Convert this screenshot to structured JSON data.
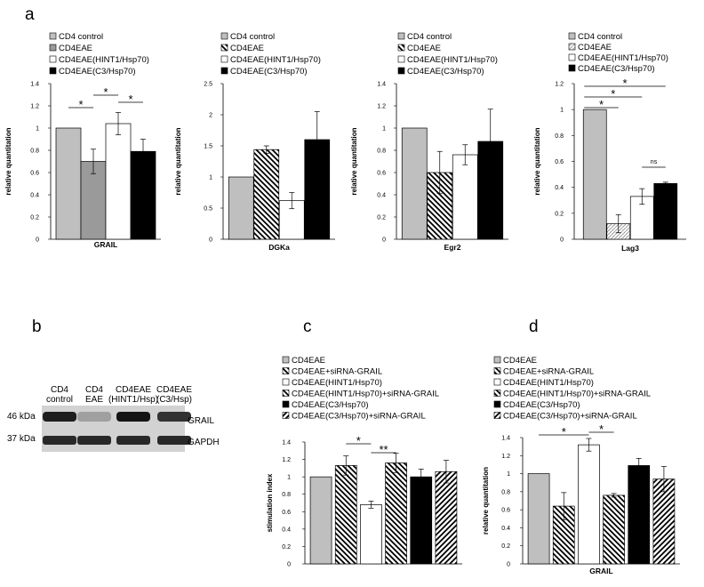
{
  "panel_labels": {
    "a": "a",
    "b": "b",
    "c": "c",
    "d": "d"
  },
  "colors": {
    "control": "#bfbfbf",
    "eae_grail": "#9a9a9a",
    "white": "#ffffff",
    "black": "#000000",
    "lag3_eae": "#e5e5e5"
  },
  "chart_data": [
    {
      "id": "grail",
      "type": "bar",
      "title": "",
      "xlabel": "GRAIL",
      "ylabel": "relative quantitation",
      "ylim": [
        0,
        1.4
      ],
      "yticks": [
        "0",
        "0.2",
        "0.4",
        "0.6",
        "0.8",
        "1",
        "1.2",
        "1.4"
      ],
      "categories": [
        "CD4 control",
        "CD4EAE",
        "CD4EAE(HINT1/Hsp70)",
        "CD4EAE(C3/Hsp70)"
      ],
      "values": [
        1.0,
        0.7,
        1.04,
        0.79
      ],
      "errors": [
        0,
        0.11,
        0.1,
        0.11
      ],
      "legend": [
        "CD4 control",
        "CD4EAE",
        "CD4EAE(HINT1/Hsp70)",
        "CD4EAE(C3/Hsp70)"
      ],
      "significance": [
        {
          "from": 0,
          "to": 1,
          "label": "*"
        },
        {
          "from": 1,
          "to": 2,
          "label": "*"
        },
        {
          "from": 2,
          "to": 3,
          "label": "*"
        }
      ]
    },
    {
      "id": "dgka",
      "type": "bar",
      "title": "",
      "xlabel": "DGKa",
      "ylabel": "relative quantitation",
      "ylim": [
        0,
        2.5
      ],
      "yticks": [
        "0",
        "0.5",
        "1",
        "1.5",
        "2",
        "2.5"
      ],
      "categories": [
        "CD4 control",
        "CD4EAE",
        "CD4EAE(HINT1/Hsp70)",
        "CD4EAE(C3/Hsp70)"
      ],
      "values": [
        1.0,
        1.44,
        0.62,
        1.6
      ],
      "errors": [
        0,
        0.06,
        0.13,
        0.45
      ],
      "legend": [
        "CD4 control",
        "CD4EAE",
        "CD4EAE(HINT1/Hsp70)",
        "CD4EAE(C3/Hsp70)"
      ]
    },
    {
      "id": "egr2",
      "type": "bar",
      "title": "",
      "xlabel": "Egr2",
      "ylabel": "relative quantitation",
      "ylim": [
        0,
        1.4
      ],
      "yticks": [
        "0",
        "0.2",
        "0.4",
        "0.6",
        "0.8",
        "1",
        "1.2",
        "1.4"
      ],
      "categories": [
        "CD4 control",
        "CD4EAE",
        "CD4EAE(HINT1/Hsp70)",
        "CD4EAE(C3/Hsp70)"
      ],
      "values": [
        1.0,
        0.6,
        0.76,
        0.88
      ],
      "errors": [
        0,
        0.19,
        0.09,
        0.29
      ],
      "legend": [
        "CD4 control",
        "CD4EAE",
        "CD4EAE(HINT1/Hsp70)",
        "CD4EAE(C3/Hsp70)"
      ]
    },
    {
      "id": "lag3",
      "type": "bar",
      "title": "",
      "xlabel": "Lag3",
      "ylabel": "relative quantitation",
      "ylim": [
        0,
        1.2
      ],
      "yticks": [
        "0",
        "0.2",
        "0.4",
        "0.6",
        "0.8",
        "1",
        "1.2"
      ],
      "categories": [
        "CD4 control",
        "CD4EAE",
        "CD4EAE(HINT1/Hsp70)",
        "CD4EAE(C3/Hsp70)"
      ],
      "values": [
        1.0,
        0.12,
        0.33,
        0.43
      ],
      "errors": [
        0,
        0.07,
        0.06,
        0.01
      ],
      "legend": [
        "CD4 control",
        "CD4EAE",
        "CD4EAE(HINT1/Hsp70)",
        "CD4EAE(C3/Hsp70)"
      ],
      "significance": [
        {
          "from": 0,
          "to": 1,
          "label": "*"
        },
        {
          "from": 0,
          "to": 2,
          "label": "*"
        },
        {
          "from": 0,
          "to": 3,
          "label": "*"
        },
        {
          "from": 2,
          "to": 3,
          "label": "ns"
        }
      ]
    },
    {
      "id": "stim",
      "type": "bar",
      "title": "",
      "xlabel": "",
      "ylabel": "stimulation index",
      "ylim": [
        0,
        1.4
      ],
      "yticks": [
        "0",
        "0.2",
        "0.4",
        "0.6",
        "0.8",
        "1",
        "1.2",
        "1.4"
      ],
      "categories": [
        "CD4EAE",
        "CD4EAE+siRNA-GRAIL",
        "CD4EAE(HINT1/Hsp70)",
        "CD4EAE(HINT1/Hsp70)+siRNA-GRAIL",
        "CD4EAE(C3/Hsp70)",
        "CD4EAE(C3/Hsp70)+siRNA-GRAIL"
      ],
      "values": [
        1.0,
        1.13,
        0.68,
        1.16,
        1.0,
        1.06
      ],
      "errors": [
        0,
        0.11,
        0.04,
        0.11,
        0.09,
        0.13
      ],
      "legend": [
        "CD4EAE",
        "CD4EAE+siRNA-GRAIL",
        "CD4EAE(HINT1/Hsp70)",
        "CD4EAE(HINT1/Hsp70)+siRNA-GRAIL",
        "CD4EAE(C3/Hsp70)",
        "CD4EAE(C3/Hsp70)+siRNA-GRAIL"
      ],
      "significance": [
        {
          "from": 1,
          "to": 2,
          "label": "*"
        },
        {
          "from": 2,
          "to": 3,
          "label": "**"
        }
      ]
    },
    {
      "id": "grail_d",
      "type": "bar",
      "title": "",
      "xlabel": "GRAIL",
      "ylabel": "relative quantitation",
      "ylim": [
        0,
        1.4
      ],
      "yticks": [
        "0",
        "0.2",
        "0.4",
        "0.6",
        "0.8",
        "1",
        "1.2",
        "1.4"
      ],
      "categories": [
        "CD4EAE",
        "CD4EAE+siRNA-GRAIL",
        "CD4EAE(HINT1/Hsp70)",
        "CD4EAE(HINT1/Hsp70)+siRNA-GRAIL",
        "CD4EAE(C3/Hsp70)",
        "CD4EAE(C3/Hsp70)+siRNA-GRAIL"
      ],
      "values": [
        1.0,
        0.64,
        1.32,
        0.76,
        1.09,
        0.94
      ],
      "errors": [
        0,
        0.15,
        0.07,
        0.02,
        0.08,
        0.14
      ],
      "legend": [
        "CD4EAE",
        "CD4EAE+siRNA-GRAIL",
        "CD4EAE(HINT1/Hsp70)",
        "CD4EAE(HINT1/Hsp70)+siRNA-GRAIL",
        "CD4EAE(C3/Hsp70)",
        "CD4EAE(C3/Hsp70)+siRNA-GRAIL"
      ],
      "significance": [
        {
          "from": 0,
          "to": 2,
          "label": "*"
        },
        {
          "from": 2,
          "to": 3,
          "label": "*"
        }
      ]
    }
  ],
  "blot": {
    "lane_labels": [
      "CD4 control",
      "CD4 EAE",
      "CD4EAE (HINT1/Hsp)",
      "CD4EAE (C3/Hsp)"
    ],
    "marker_grail": "46 kDa",
    "marker_gapdh": "37 kDa",
    "protein_grail": "GRAIL",
    "protein_gapdh": "GAPDH",
    "grail_intensity": [
      0.95,
      0.3,
      1.0,
      0.85
    ],
    "gapdh_intensity": [
      0.9,
      0.9,
      0.9,
      0.9
    ]
  }
}
